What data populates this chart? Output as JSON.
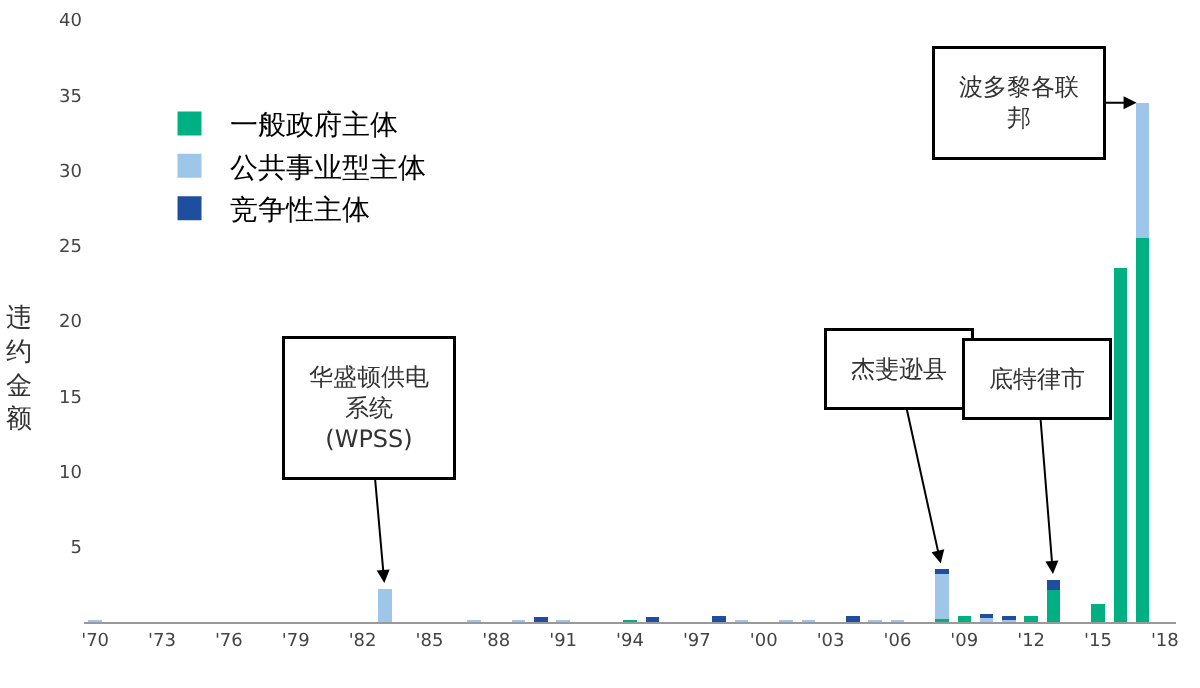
{
  "chart_data": {
    "type": "bar",
    "ylabel": "违约金额",
    "stacked": true,
    "x": [
      1970,
      1983,
      1987,
      1989,
      1990,
      1991,
      1994,
      1995,
      1998,
      1999,
      2001,
      2002,
      2004,
      2005,
      2006,
      2008,
      2009,
      2010,
      2011,
      2012,
      2013,
      2015,
      2016,
      2017
    ],
    "series": [
      {
        "name": "一般政府主体",
        "color": "#00b083",
        "values": [
          null,
          null,
          null,
          null,
          null,
          null,
          0.1,
          null,
          null,
          null,
          null,
          null,
          null,
          null,
          null,
          0.2,
          0.4,
          null,
          null,
          0.4,
          2.1,
          1.2,
          23.5,
          25.5
        ]
      },
      {
        "name": "公共事业型主体",
        "color": "#9dc6e8",
        "values": [
          0.1,
          2.2,
          0.1,
          0.1,
          null,
          0.1,
          null,
          null,
          null,
          0.1,
          0.1,
          0.1,
          null,
          0.1,
          0.1,
          3.1,
          null,
          0.3,
          0.2,
          null,
          null,
          null,
          null,
          9.0
        ]
      },
      {
        "name": "竞争性主体",
        "color": "#1f4e9e",
        "values": [
          null,
          null,
          null,
          null,
          0.3,
          null,
          null,
          0.3,
          0.4,
          null,
          null,
          null,
          0.4,
          null,
          null,
          0.2,
          null,
          0.2,
          0.1,
          null,
          0.7,
          null,
          null,
          null
        ]
      }
    ],
    "xlim": [
      1969.5,
      2018.5
    ],
    "xticks": [
      {
        "value": 1970,
        "label": "'70"
      },
      {
        "value": 1973,
        "label": "'73"
      },
      {
        "value": 1976,
        "label": "'76"
      },
      {
        "value": 1979,
        "label": "'79"
      },
      {
        "value": 1982,
        "label": "'82"
      },
      {
        "value": 1985,
        "label": "'85"
      },
      {
        "value": 1988,
        "label": "'88"
      },
      {
        "value": 1991,
        "label": "'91"
      },
      {
        "value": 1994,
        "label": "'94"
      },
      {
        "value": 1997,
        "label": "'97"
      },
      {
        "value": 2000,
        "label": "'00"
      },
      {
        "value": 2003,
        "label": "'03"
      },
      {
        "value": 2006,
        "label": "'06"
      },
      {
        "value": 2009,
        "label": "'09"
      },
      {
        "value": 2012,
        "label": "'12"
      },
      {
        "value": 2015,
        "label": "'15"
      },
      {
        "value": 2018,
        "label": "'18"
      }
    ],
    "ylim": [
      0,
      40
    ],
    "yticks": [
      {
        "value": 0,
        "label": null
      },
      5,
      10,
      15,
      20,
      25,
      30,
      35,
      40
    ],
    "grid": false,
    "legend": "top left",
    "annotations": [
      {
        "text": "华盛顿供电系统(WPSS)",
        "x": 1983,
        "y": 2.2
      },
      {
        "text": "杰斐逊县",
        "x": 2008,
        "y": 3.5
      },
      {
        "text": "底特律市",
        "x": 2013,
        "y": 2.8
      },
      {
        "text": "波多黎各联邦",
        "x": 2017,
        "y": 34.5
      }
    ]
  }
}
